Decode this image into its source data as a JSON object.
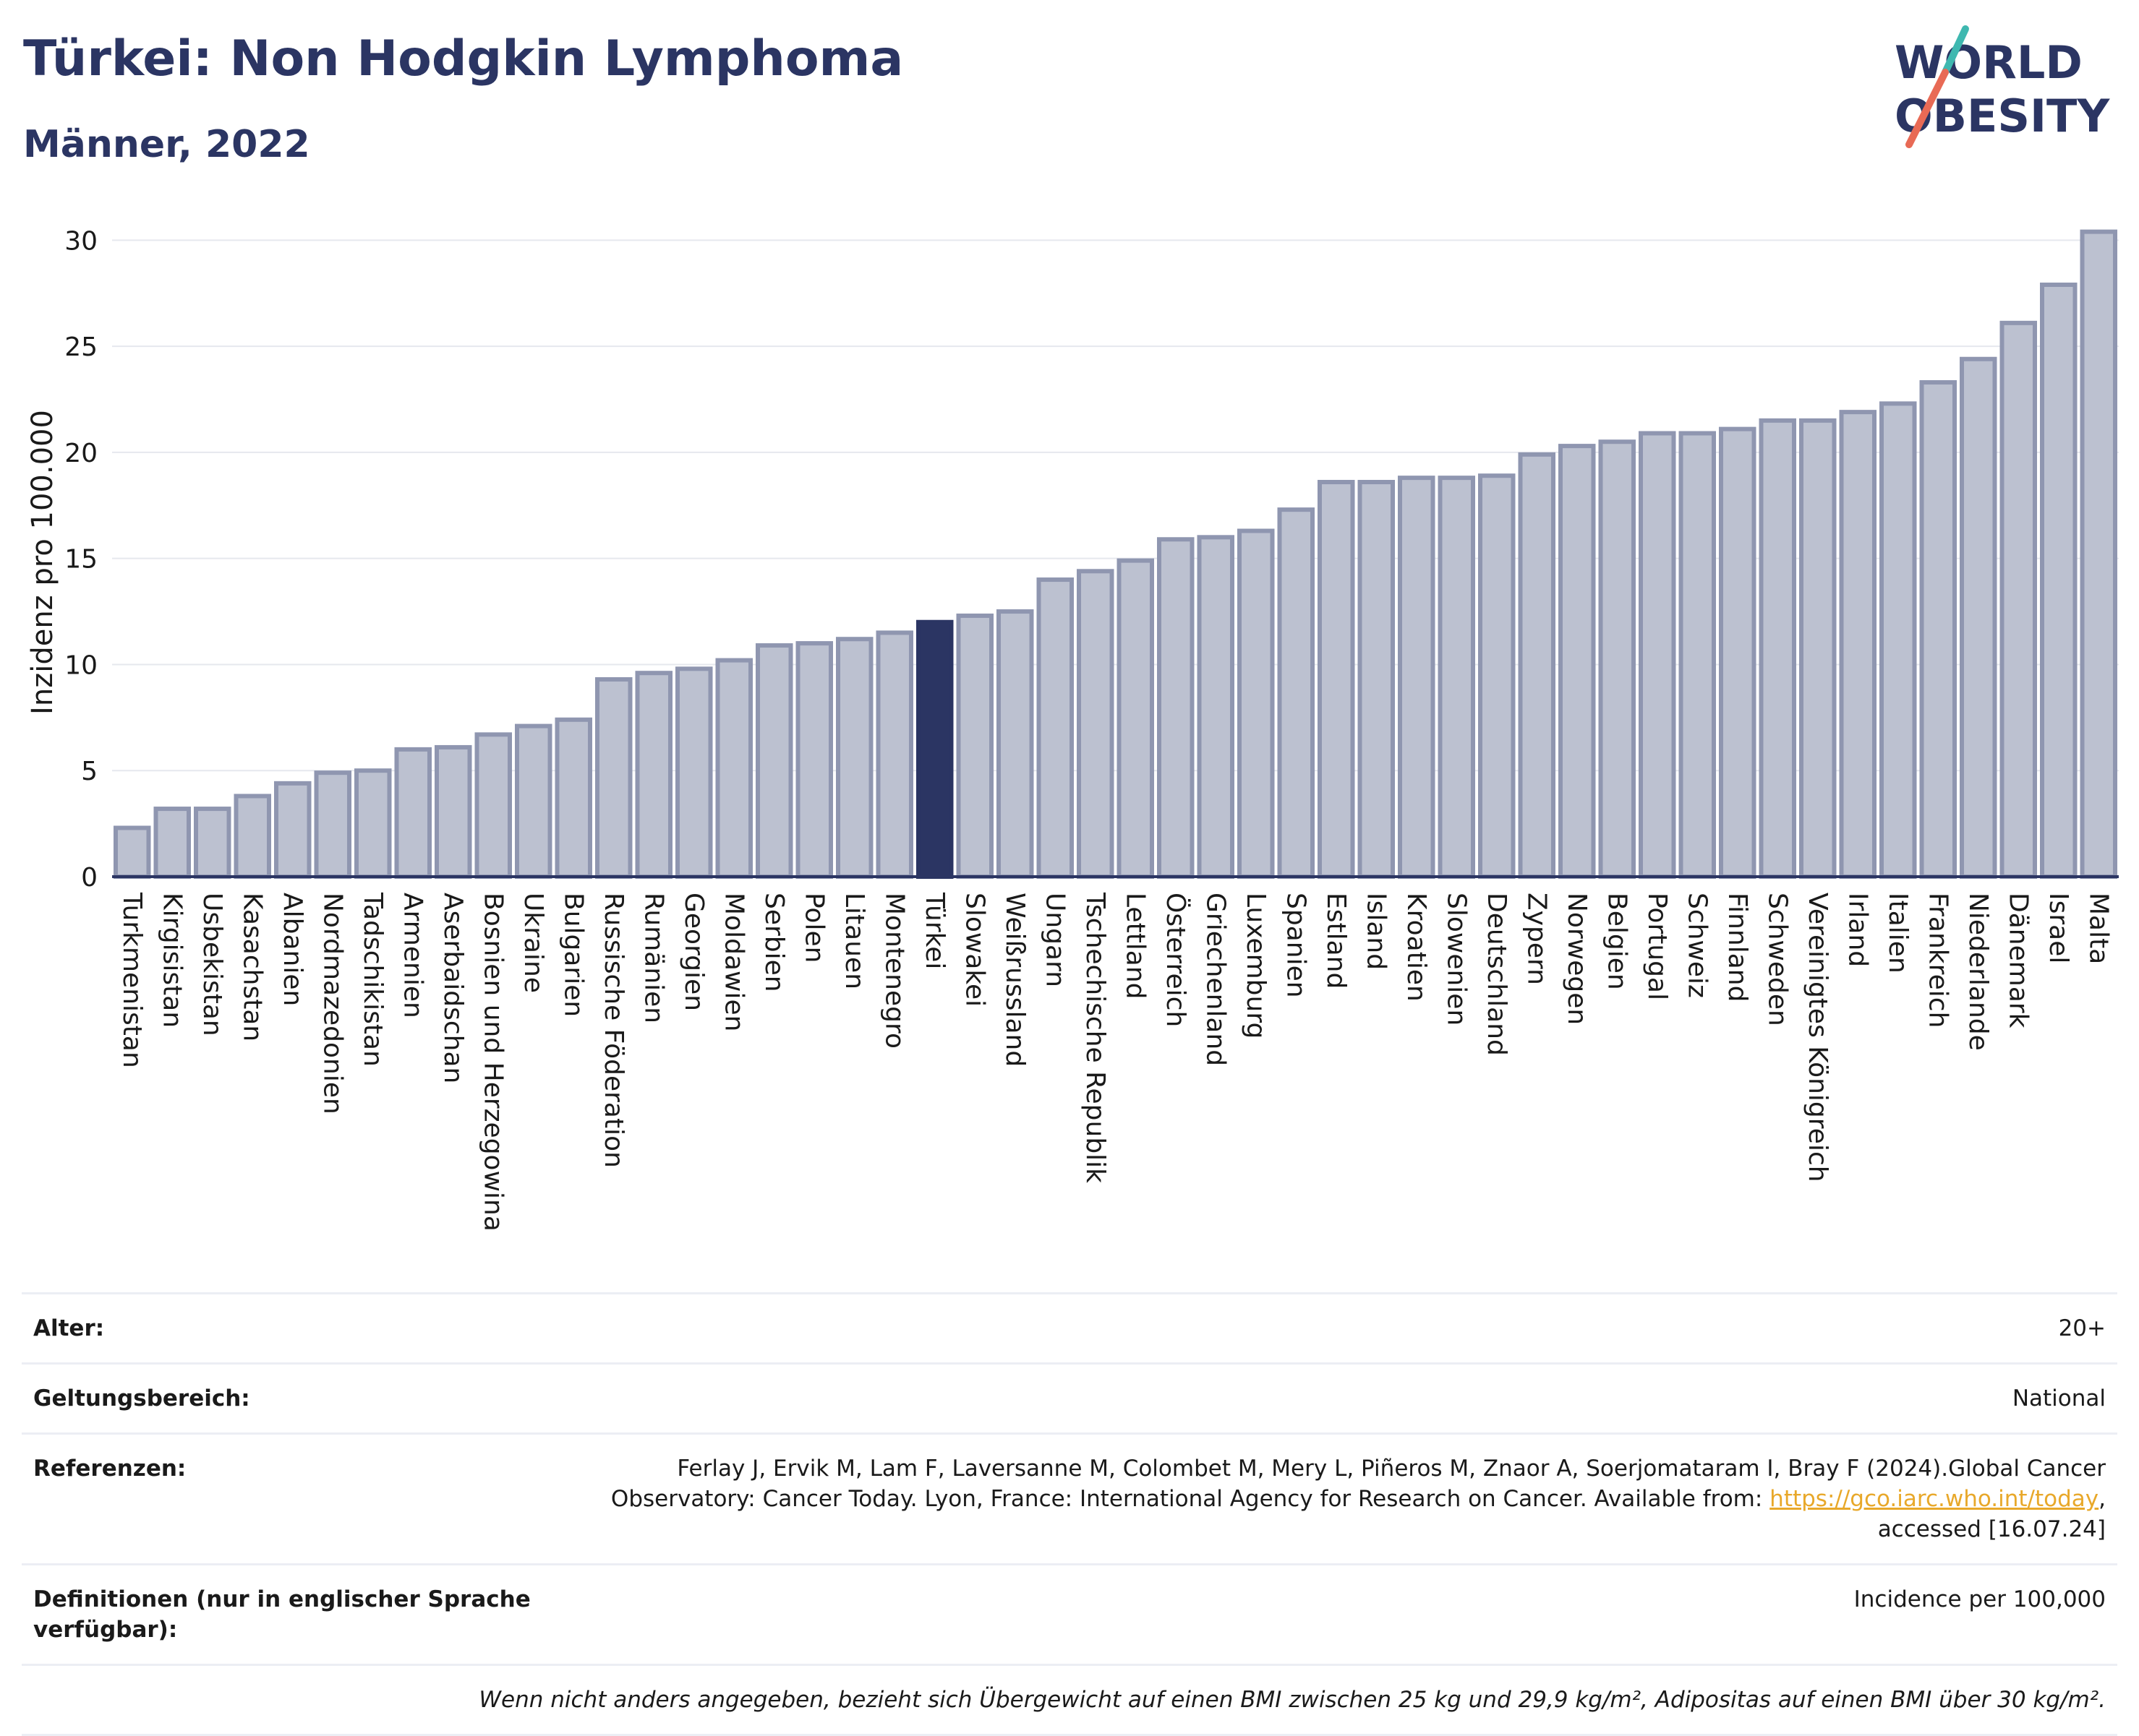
{
  "header": {
    "title": "Türkei: Non Hodgkin Lymphoma",
    "subtitle": "Männer, 2022"
  },
  "logo": {
    "line1": "WORLD",
    "line2": "OBESITY",
    "icon": "world-obesity-logo"
  },
  "colors": {
    "bar": "#bcc1d0",
    "bar_edge": "#8f96b0",
    "highlight": "#2b3563",
    "axis": "#2b3563",
    "grid": "#e6e8ee",
    "link": "#e8a82a"
  },
  "chart_data": {
    "type": "bar",
    "ylabel": "Inzidenz pro 100.000",
    "xlabel": "",
    "ylim": [
      0,
      31
    ],
    "yticks": [
      0,
      5,
      10,
      15,
      20,
      25,
      30
    ],
    "grid": true,
    "highlight": "Türkei",
    "categories": [
      "Turkmenistan",
      "Kirgisistan",
      "Usbekistan",
      "Kasachstan",
      "Albanien",
      "Nordmazedonien",
      "Tadschikistan",
      "Armenien",
      "Aserbaidschan",
      "Bosnien und Herzegowina",
      "Ukraine",
      "Bulgarien",
      "Russische Föderation",
      "Rumänien",
      "Georgien",
      "Moldawien",
      "Serbien",
      "Polen",
      "Litauen",
      "Montenegro",
      "Türkei",
      "Slowakei",
      "Weißrussland",
      "Ungarn",
      "Tschechische Republik",
      "Lettland",
      "Österreich",
      "Griechenland",
      "Luxemburg",
      "Spanien",
      "Estland",
      "Island",
      "Kroatien",
      "Slowenien",
      "Deutschland",
      "Zypern",
      "Norwegen",
      "Belgien",
      "Portugal",
      "Schweiz",
      "Finnland",
      "Schweden",
      "Vereinigtes Königreich",
      "Irland",
      "Italien",
      "Frankreich",
      "Niederlande",
      "Dänemark",
      "Israel",
      "Malta"
    ],
    "values": [
      2.3,
      3.2,
      3.2,
      3.8,
      4.4,
      4.9,
      5.0,
      6.0,
      6.1,
      6.7,
      7.1,
      7.4,
      9.3,
      9.6,
      9.8,
      10.2,
      10.9,
      11.0,
      11.2,
      11.5,
      12.0,
      12.3,
      12.5,
      14.0,
      14.4,
      14.9,
      15.9,
      16.0,
      16.3,
      17.3,
      18.6,
      18.6,
      18.8,
      18.8,
      18.9,
      19.9,
      20.3,
      20.5,
      20.9,
      20.9,
      21.1,
      21.5,
      21.5,
      21.9,
      22.3,
      23.3,
      24.4,
      26.1,
      27.9,
      30.4
    ]
  },
  "info": {
    "age_label": "Alter:",
    "age_value": "20+",
    "scope_label": "Geltungsbereich:",
    "scope_value": "National",
    "ref_label": "Referenzen:",
    "ref_text_1": "Ferlay J, Ervik M, Lam F, Laversanne M, Colombet M, Mery L, Piñeros M, Znaor A, Soerjomataram I, Bray F (2024).Global Cancer",
    "ref_text_2": "Observatory: Cancer Today. Lyon, France: International Agency for Research on Cancer. Available from: ",
    "ref_link": "https://gco.iarc.who.int/today",
    "ref_text_3": ",",
    "ref_text_4": "accessed [16.07.24]",
    "def_label_1": "Definitionen (nur in englischer Sprache",
    "def_label_2": "verfügbar):",
    "def_value": "Incidence per 100,000",
    "note": "Wenn nicht anders angegeben, bezieht sich Übergewicht auf einen BMI zwischen 25 kg und 29,9 kg/m², Adipositas auf einen BMI über 30 kg/m²."
  }
}
